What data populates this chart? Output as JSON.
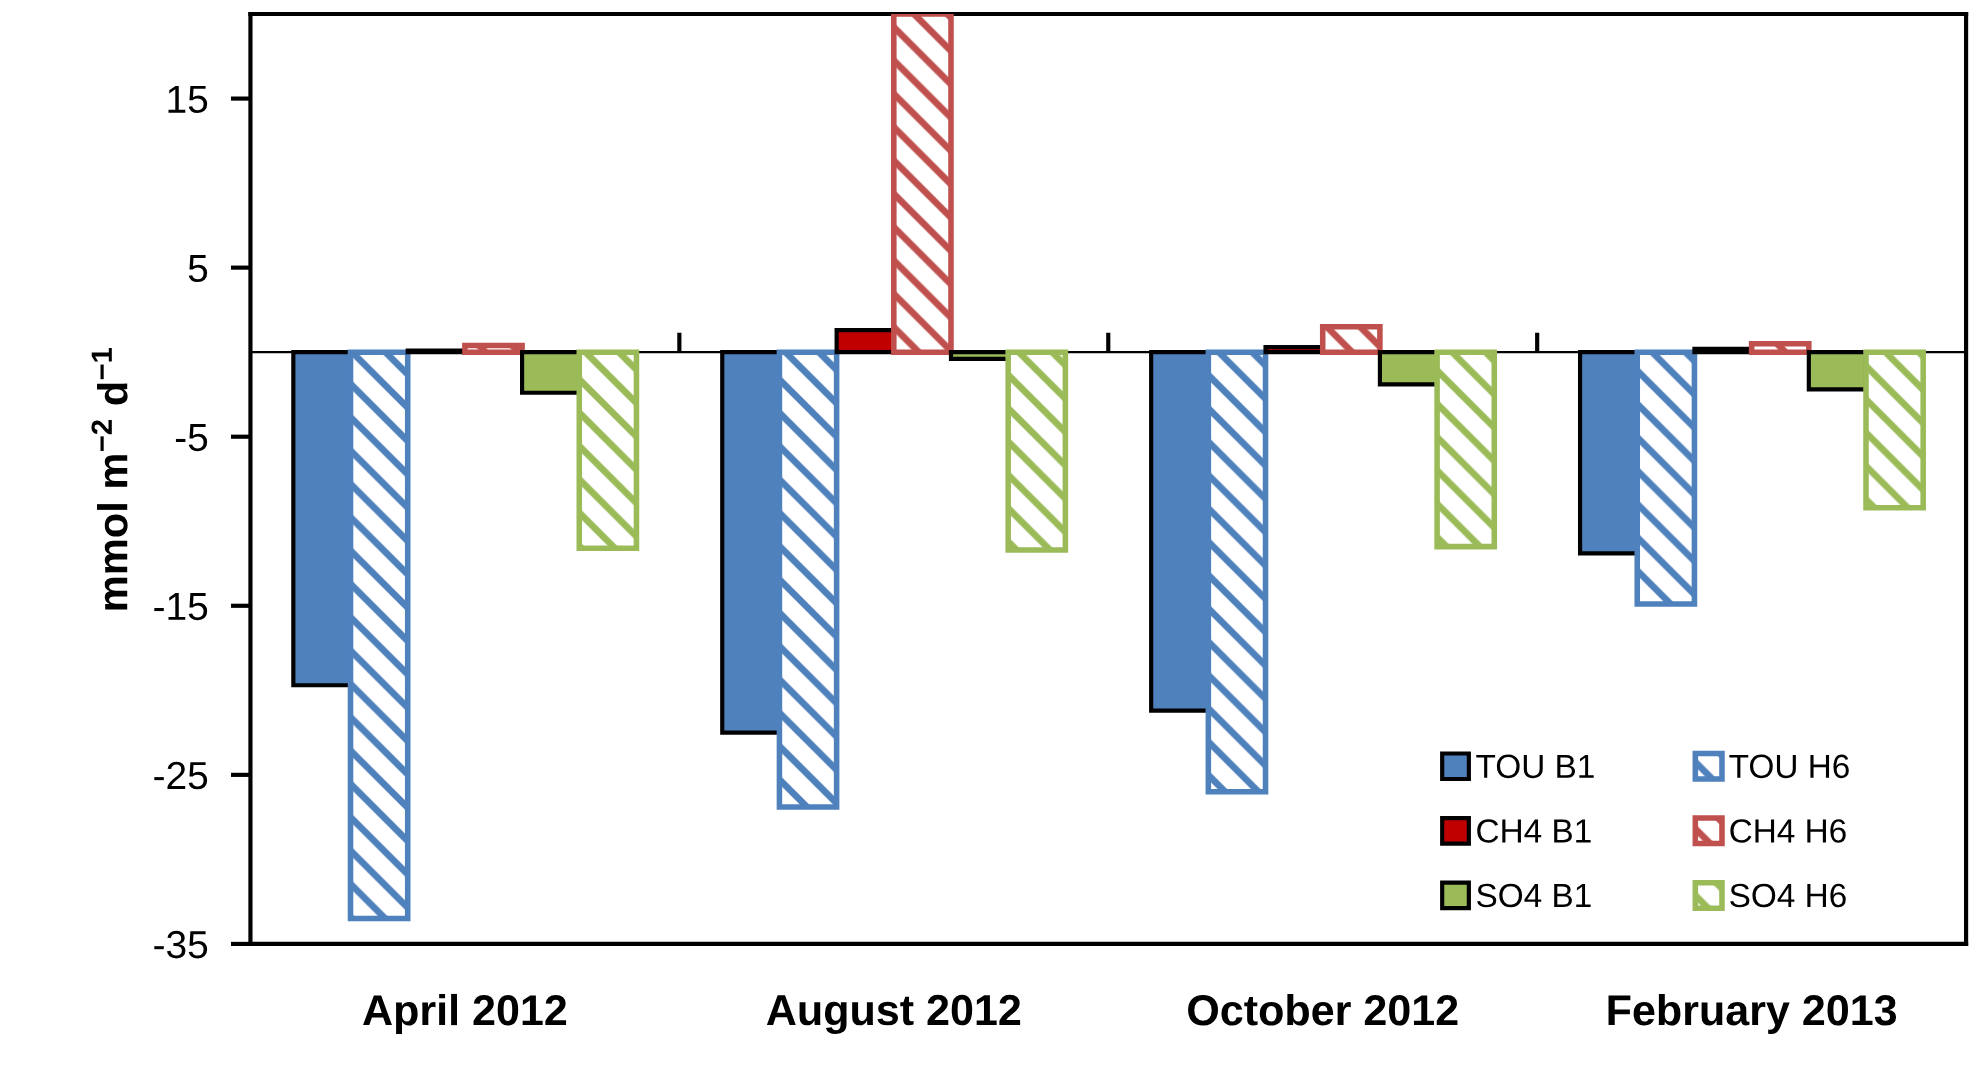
{
  "chart_data": {
    "type": "bar",
    "ylabel": "mmol m$^{−2}$ d$^{−1}$",
    "categories": [
      "April 2012",
      "August 2012",
      "October 2012",
      "February 2013"
    ],
    "series": [
      {
        "name": "TOU B1",
        "color": "#4f81bd",
        "values": [
          -19.7,
          -22.5,
          -21.2,
          -11.9
        ]
      },
      {
        "name": "TOU H6",
        "color": "#4f81bd",
        "values": [
          -33.5,
          -26.9,
          -26.0,
          -14.9
        ]
      },
      {
        "name": "CH4 B1",
        "color": "#c00000",
        "values": [
          0.1,
          1.3,
          0.3,
          0.2
        ]
      },
      {
        "name": "CH4 H6",
        "color": "#c0504d",
        "values": [
          0.4,
          20,
          1.5,
          0.5
        ]
      },
      {
        "name": "SO4 B1",
        "color": "#9bbb59",
        "values": [
          -2.4,
          -0.4,
          -1.9,
          -2.2
        ]
      },
      {
        "name": "SO4 H6",
        "color": "#9bbb59",
        "values": [
          -11.6,
          -11.7,
          -11.5,
          -9.2
        ]
      }
    ],
    "ylim": [
      -35,
      20
    ],
    "yticks": [
      -35,
      -25,
      -15,
      -5,
      5,
      15
    ],
    "grid": false,
    "legend": "bottom right"
  }
}
